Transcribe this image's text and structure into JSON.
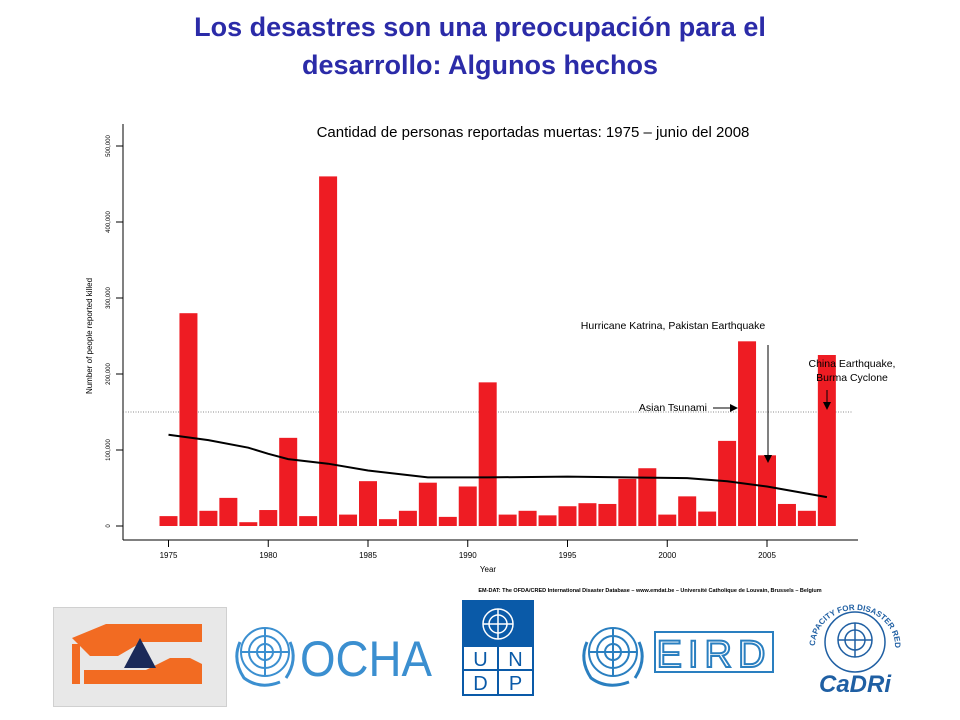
{
  "slide": {
    "title_line1": "Los desastres son una preocupación para el",
    "title_line2": "desarrollo: Algunos hechos"
  },
  "chart_data": {
    "type": "bar",
    "title": "Cantidad de personas reportadas muertas: 1975 – junio del 2008",
    "xlabel": "Year",
    "ylabel": "Number of people reported killed",
    "x": [
      1975,
      1976,
      1977,
      1978,
      1979,
      1980,
      1981,
      1982,
      1983,
      1984,
      1985,
      1986,
      1987,
      1988,
      1989,
      1990,
      1991,
      1992,
      1993,
      1994,
      1995,
      1996,
      1997,
      1998,
      1999,
      2000,
      2001,
      2002,
      2003,
      2004,
      2005,
      2006,
      2007,
      2008
    ],
    "values": [
      13000,
      280000,
      20000,
      37000,
      5000,
      21000,
      116000,
      13000,
      460000,
      15000,
      59000,
      9000,
      20000,
      57000,
      12000,
      52000,
      189000,
      15000,
      20000,
      14000,
      26000,
      30000,
      29000,
      62000,
      76000,
      15000,
      39000,
      19000,
      112000,
      243000,
      93000,
      29000,
      20000,
      225000
    ],
    "trend": [
      {
        "x": 1975,
        "y": 120000
      },
      {
        "x": 1977,
        "y": 113000
      },
      {
        "x": 1979,
        "y": 103000
      },
      {
        "x": 1980,
        "y": 95000
      },
      {
        "x": 1981,
        "y": 88000
      },
      {
        "x": 1983,
        "y": 82000
      },
      {
        "x": 1985,
        "y": 73000
      },
      {
        "x": 1988,
        "y": 64000
      },
      {
        "x": 1991,
        "y": 64000
      },
      {
        "x": 1995,
        "y": 65000
      },
      {
        "x": 1998,
        "y": 64000
      },
      {
        "x": 2001,
        "y": 63000
      },
      {
        "x": 2003,
        "y": 59000
      },
      {
        "x": 2005,
        "y": 52000
      },
      {
        "x": 2008,
        "y": 38000
      }
    ],
    "reference_line": 150000,
    "x_ticks": [
      1975,
      1980,
      1985,
      1990,
      1995,
      2000,
      2005
    ],
    "y_ticks": [
      0,
      100000,
      200000,
      300000,
      400000,
      500000
    ],
    "y_tick_labels": [
      "0",
      "100,000",
      "200,000",
      "300,000",
      "400,000",
      "500,000"
    ],
    "ylim": [
      0,
      500000
    ],
    "bar_color": "#ee1c23",
    "annotations": [
      {
        "text_lines": [
          "Hurricane Katrina, Pakistan Earthquake"
        ],
        "year": 2005,
        "value": 93000
      },
      {
        "text_lines": [
          "Asian Tsunami"
        ],
        "year": 2004,
        "value": 150000
      },
      {
        "text_lines": [
          "China Earthquake,",
          "Burma Cyclone"
        ],
        "year": 2008,
        "value": 150000
      }
    ],
    "source": "EM-DAT: The OFDA/CRED International Disaster Database – www.emdat.be – Université Catholique de Louvain, Brussels – Belgium"
  },
  "logos": {
    "ocha_text": "OCHA",
    "undp_letters": [
      "U",
      "N",
      "D",
      "P"
    ],
    "eird_text": "EIRD",
    "cadri_text": "CaDRi",
    "cadri_ring_text": "CAPACITY FOR DISASTER REDUCTION INITIATIVE",
    "colors": {
      "ocha": "#3b8fd0",
      "undp": "#0a5aa8",
      "eird": "#2a7fc0",
      "cadri": "#1f5fa3",
      "logo1_orange": "#f26b22",
      "logo1_navy": "#1b2a59"
    }
  }
}
